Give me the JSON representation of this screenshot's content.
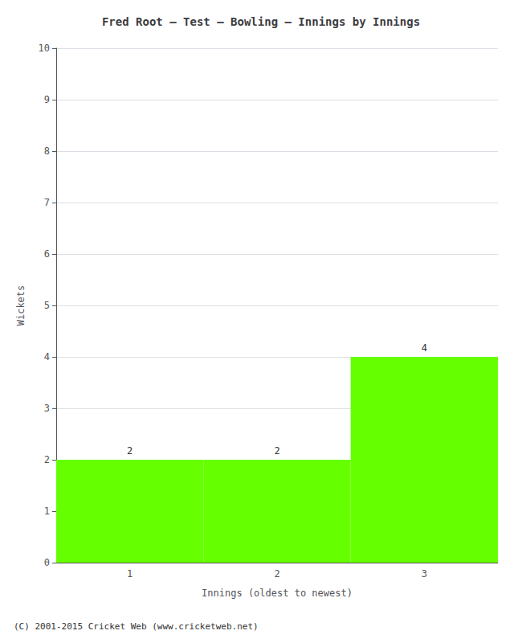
{
  "chart_data": {
    "type": "bar",
    "title": "Fred Root – Test – Bowling – Innings by Innings",
    "xlabel": "Innings (oldest to newest)",
    "ylabel": "Wickets",
    "categories": [
      "1",
      "2",
      "3"
    ],
    "values": [
      2,
      2,
      4
    ],
    "color": "#66ff00",
    "ylim": [
      0,
      10
    ],
    "yticks": [
      0,
      1,
      2,
      3,
      4,
      5,
      6,
      7,
      8,
      9,
      10
    ],
    "grid": true,
    "data_labels": true,
    "annotations": [
      "(C) 2001-2015 Cricket Web (www.cricketweb.net)"
    ]
  }
}
